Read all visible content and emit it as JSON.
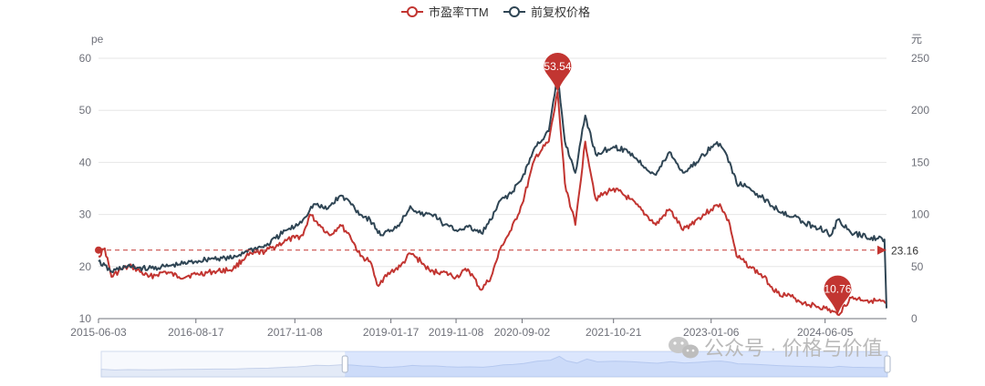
{
  "chart_data": {
    "type": "line",
    "legend": {
      "position": "top-center",
      "items": [
        {
          "name": "市盈率TTM",
          "color": "#c23531",
          "symbol": "emptyCircle"
        },
        {
          "name": "前复权价格",
          "color": "#2f4554",
          "symbol": "emptyCircle"
        }
      ]
    },
    "x_ticks": [
      "2015-06-03",
      "2016-08-17",
      "2017-11-08",
      "2019-01-17",
      "2019-11-08",
      "2020-09-02",
      "2021-10-21",
      "2023-01-06",
      "2024-06-05"
    ],
    "y_left": {
      "label": "pe",
      "min": 10,
      "max": 60,
      "ticks": [
        10,
        20,
        30,
        40,
        50,
        60
      ]
    },
    "y_right": {
      "label": "元",
      "min": 0,
      "max": 250,
      "ticks": [
        0,
        50,
        100,
        150,
        200,
        250
      ]
    },
    "grid": true,
    "series": [
      {
        "name": "市盈率TTM",
        "axis": "left",
        "color": "#c23531",
        "points": [
          [
            "2015-06-03",
            22
          ],
          [
            "2015-07-01",
            23.5
          ],
          [
            "2015-08-01",
            18
          ],
          [
            "2015-09-15",
            19.5
          ],
          [
            "2015-11-01",
            20
          ],
          [
            "2016-01-15",
            18
          ],
          [
            "2016-04-01",
            19
          ],
          [
            "2016-06-01",
            18
          ],
          [
            "2016-08-17",
            18.5
          ],
          [
            "2016-11-01",
            19
          ],
          [
            "2017-02-01",
            19.5
          ],
          [
            "2017-04-01",
            22
          ],
          [
            "2017-07-01",
            23
          ],
          [
            "2017-10-01",
            25
          ],
          [
            "2017-11-08",
            25.5
          ],
          [
            "2017-12-15",
            26
          ],
          [
            "2018-01-15",
            30
          ],
          [
            "2018-03-01",
            28
          ],
          [
            "2018-04-15",
            26
          ],
          [
            "2018-06-01",
            28
          ],
          [
            "2018-07-15",
            26
          ],
          [
            "2018-09-01",
            22
          ],
          [
            "2018-10-15",
            21
          ],
          [
            "2018-11-15",
            16.5
          ],
          [
            "2019-01-17",
            19
          ],
          [
            "2019-03-01",
            20
          ],
          [
            "2019-04-15",
            22.5
          ],
          [
            "2019-06-01",
            21
          ],
          [
            "2019-07-15",
            19
          ],
          [
            "2019-09-01",
            19
          ],
          [
            "2019-11-08",
            18
          ],
          [
            "2020-01-01",
            19.5
          ],
          [
            "2020-03-01",
            15.5
          ],
          [
            "2020-04-15",
            18
          ],
          [
            "2020-06-01",
            24
          ],
          [
            "2020-07-15",
            27
          ],
          [
            "2020-09-02",
            32
          ],
          [
            "2020-11-01",
            41
          ],
          [
            "2021-01-01",
            44
          ],
          [
            "2021-02-10",
            53.54
          ],
          [
            "2021-03-15",
            36
          ],
          [
            "2021-05-01",
            28
          ],
          [
            "2021-06-15",
            44
          ],
          [
            "2021-08-01",
            33
          ],
          [
            "2021-10-21",
            35
          ],
          [
            "2022-01-01",
            33
          ],
          [
            "2022-03-15",
            30
          ],
          [
            "2022-05-01",
            28
          ],
          [
            "2022-07-01",
            31
          ],
          [
            "2022-09-01",
            27
          ],
          [
            "2022-11-01",
            29
          ],
          [
            "2023-01-06",
            31
          ],
          [
            "2023-02-15",
            32
          ],
          [
            "2023-04-01",
            28
          ],
          [
            "2023-05-01",
            22
          ],
          [
            "2023-07-01",
            20
          ],
          [
            "2023-09-01",
            18
          ],
          [
            "2023-11-01",
            15
          ],
          [
            "2024-01-15",
            14
          ],
          [
            "2024-03-01",
            13
          ],
          [
            "2024-06-05",
            12
          ],
          [
            "2024-08-01",
            10.76
          ],
          [
            "2024-10-01",
            14
          ],
          [
            "2025-01-01",
            13.5
          ],
          [
            "2025-03-10",
            13
          ]
        ]
      },
      {
        "name": "前复权价格",
        "axis": "right",
        "color": "#2f4554",
        "points": [
          [
            "2015-06-03",
            55
          ],
          [
            "2015-08-01",
            45
          ],
          [
            "2015-10-01",
            50
          ],
          [
            "2016-01-15",
            48
          ],
          [
            "2016-04-01",
            50
          ],
          [
            "2016-06-01",
            52
          ],
          [
            "2016-08-17",
            55
          ],
          [
            "2016-11-01",
            58
          ],
          [
            "2017-02-01",
            58
          ],
          [
            "2017-04-01",
            65
          ],
          [
            "2017-07-01",
            70
          ],
          [
            "2017-10-01",
            85
          ],
          [
            "2017-11-08",
            88
          ],
          [
            "2017-12-15",
            95
          ],
          [
            "2018-02-01",
            110
          ],
          [
            "2018-04-01",
            105
          ],
          [
            "2018-06-01",
            118
          ],
          [
            "2018-07-15",
            112
          ],
          [
            "2018-09-01",
            100
          ],
          [
            "2018-10-15",
            95
          ],
          [
            "2018-12-01",
            80
          ],
          [
            "2019-01-17",
            85
          ],
          [
            "2019-03-01",
            92
          ],
          [
            "2019-04-15",
            108
          ],
          [
            "2019-06-01",
            100
          ],
          [
            "2019-08-01",
            100
          ],
          [
            "2019-09-15",
            90
          ],
          [
            "2019-11-08",
            85
          ],
          [
            "2020-01-01",
            88
          ],
          [
            "2020-03-01",
            82
          ],
          [
            "2020-04-15",
            95
          ],
          [
            "2020-06-01",
            115
          ],
          [
            "2020-07-15",
            120
          ],
          [
            "2020-09-02",
            135
          ],
          [
            "2020-11-01",
            165
          ],
          [
            "2021-01-01",
            180
          ],
          [
            "2021-02-10",
            233
          ],
          [
            "2021-03-15",
            170
          ],
          [
            "2021-05-01",
            140
          ],
          [
            "2021-06-15",
            195
          ],
          [
            "2021-08-01",
            158
          ],
          [
            "2021-10-21",
            165
          ],
          [
            "2022-01-01",
            160
          ],
          [
            "2022-03-15",
            145
          ],
          [
            "2022-05-01",
            138
          ],
          [
            "2022-07-01",
            160
          ],
          [
            "2022-09-01",
            140
          ],
          [
            "2022-11-01",
            150
          ],
          [
            "2023-01-06",
            165
          ],
          [
            "2023-02-15",
            168
          ],
          [
            "2023-04-01",
            150
          ],
          [
            "2023-05-01",
            130
          ],
          [
            "2023-07-01",
            125
          ],
          [
            "2023-09-01",
            115
          ],
          [
            "2023-11-01",
            105
          ],
          [
            "2024-01-15",
            98
          ],
          [
            "2024-03-01",
            92
          ],
          [
            "2024-06-05",
            85
          ],
          [
            "2024-07-01",
            80
          ],
          [
            "2024-08-01",
            95
          ],
          [
            "2024-10-01",
            82
          ],
          [
            "2025-01-01",
            78
          ],
          [
            "2025-03-01",
            76
          ],
          [
            "2025-03-10",
            10
          ]
        ]
      }
    ],
    "mark_points": [
      {
        "label": "53.54",
        "date": "2021-02-10",
        "value": 53.54,
        "series": "市盈率TTM"
      },
      {
        "label": "10.76",
        "date": "2024-08-01",
        "value": 10.76,
        "series": "市盈率TTM"
      }
    ],
    "mark_line": {
      "label": "23.16",
      "value": 23.16,
      "series": "市盈率TTM"
    },
    "date_range": {
      "start": "2015-06-03",
      "end": "2025-03-10"
    },
    "zoom": {
      "start_percent": 31,
      "end_percent": 100
    }
  },
  "watermark": {
    "text": "公众号 · 价格与价值"
  }
}
